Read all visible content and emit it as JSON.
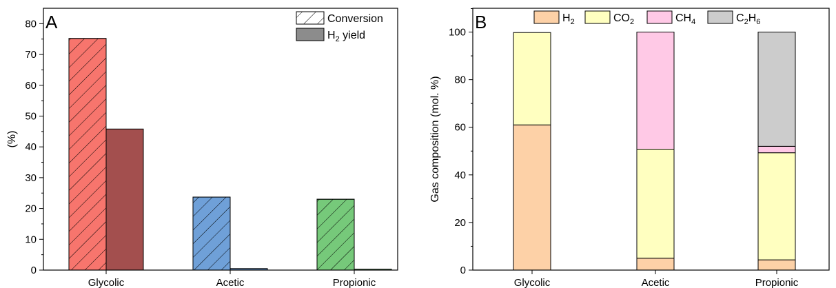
{
  "chart_data": [
    {
      "type": "bar",
      "panel": "A",
      "ylabel": "(%)",
      "xlabel": "",
      "ylim": [
        0,
        85
      ],
      "yticks": [
        0,
        10,
        20,
        30,
        40,
        50,
        60,
        70,
        80
      ],
      "categories": [
        "Glycolic",
        "Acetic",
        "Propionic"
      ],
      "category_colors": [
        "#f7756d",
        "#6fa0d8",
        "#76c97a"
      ],
      "yield_colors": [
        "#a34f4e",
        "#5a84b4",
        "#5fa765"
      ],
      "legend_position": "top-right",
      "series": [
        {
          "name": "Conversion",
          "pattern": "hatched",
          "values": [
            75.2,
            23.7,
            23.0
          ]
        },
        {
          "name": "H2 yield",
          "legend_label_main": "H",
          "legend_label_sub": "2",
          "legend_label_rest": " yield",
          "pattern": "solid",
          "legend_color": "#8c8c8c",
          "values": [
            45.8,
            0.5,
            0.3
          ]
        }
      ]
    },
    {
      "type": "bar",
      "stacked": true,
      "panel": "B",
      "ylabel": "Gas composition (mol. %)",
      "xlabel": "",
      "ylim": [
        0,
        110
      ],
      "yticks": [
        0,
        20,
        40,
        60,
        80,
        100
      ],
      "categories": [
        "Glycolic",
        "Acetic",
        "Propionic"
      ],
      "legend_position": "top",
      "series": [
        {
          "name": "H2",
          "legend_main": "H",
          "legend_sub": "2",
          "legend_rest": "",
          "color": "#fdd1a7",
          "values": [
            61.0,
            5.0,
            4.3
          ]
        },
        {
          "name": "CO2",
          "legend_main": "CO",
          "legend_sub": "2",
          "legend_rest": "",
          "color": "#ffffc0",
          "values": [
            38.8,
            45.8,
            45.0
          ]
        },
        {
          "name": "CH4",
          "legend_main": "CH",
          "legend_sub": "4",
          "legend_rest": "",
          "color": "#ffc9e6",
          "values": [
            0.0,
            49.2,
            2.7
          ]
        },
        {
          "name": "C2H6",
          "legend_main": "C",
          "legend_sub": "2",
          "legend_rest": "H",
          "legend_sub2": "6",
          "color": "#cccccc",
          "values": [
            0.0,
            0.0,
            48.0
          ]
        }
      ]
    }
  ]
}
